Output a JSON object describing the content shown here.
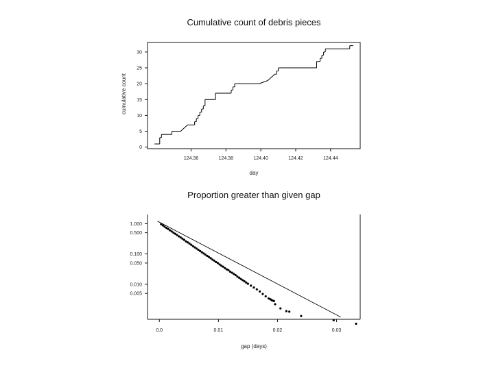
{
  "chart_data": [
    {
      "type": "line",
      "title": "Cumulative count of debris pieces",
      "xlabel": "day",
      "ylabel": "cumulative count",
      "xlim": [
        124.335,
        124.457
      ],
      "ylim": [
        -0.5,
        33
      ],
      "xticks": [
        "124.36",
        "124.38",
        "124.40",
        "124.42",
        "124.44"
      ],
      "yticks": [
        "0",
        "5",
        "10",
        "15",
        "20",
        "25",
        "30"
      ],
      "series": [
        {
          "x": [
            124.339,
            124.342,
            124.342,
            124.343,
            124.343,
            124.349,
            124.349,
            124.354,
            124.358,
            124.362,
            124.362,
            124.363,
            124.363,
            124.364,
            124.364,
            124.365,
            124.365,
            124.366,
            124.366,
            124.367,
            124.367,
            124.368,
            124.368,
            124.374,
            124.374,
            124.383,
            124.383,
            124.384,
            124.384,
            124.385,
            124.385,
            124.399,
            124.404,
            124.404,
            124.408,
            124.409,
            124.409,
            124.41,
            124.41,
            124.411,
            124.411,
            124.432,
            124.432,
            124.434,
            124.434,
            124.435,
            124.435,
            124.436,
            124.436,
            124.437,
            124.437,
            124.451,
            124.451,
            124.453
          ],
          "y": [
            1,
            1,
            3,
            3,
            4,
            4,
            5,
            5,
            7,
            7,
            8,
            8,
            9,
            9,
            10,
            10,
            11,
            11,
            12,
            12,
            13,
            13,
            15,
            15,
            17,
            17,
            18,
            18,
            19,
            19,
            20,
            20,
            21,
            21,
            23,
            23,
            24,
            24,
            25,
            25,
            25,
            25,
            27,
            27,
            28,
            28,
            29,
            29,
            30,
            30,
            31,
            31,
            32,
            32
          ]
        }
      ],
      "grid": false
    },
    {
      "type": "scatter",
      "title": "Proportion greater than given gap",
      "xlabel": "gap (days)",
      "ylabel": "",
      "log_y": true,
      "xlim": [
        -0.002,
        0.034
      ],
      "ylim": [
        0.0007,
        2
      ],
      "xticks": [
        "0.0",
        "0.01",
        "0.02",
        "0.03"
      ],
      "yticks": [
        "1.000",
        "0.500",
        "0.100",
        "0.050",
        "0.010",
        "0.005"
      ],
      "fit_line": {
        "x": [
          -0.0003,
          0.0307
        ],
        "y": [
          1.2,
          0.00083
        ]
      },
      "series": [
        {
          "x": [
            0.0003,
            0.0006,
            0.0009,
            0.0012,
            0.0015,
            0.0018,
            0.0021,
            0.0024,
            0.0027,
            0.003,
            0.0033,
            0.0036,
            0.0039,
            0.0042,
            0.0045,
            0.0048,
            0.0051,
            0.0054,
            0.0057,
            0.006,
            0.0063,
            0.0066,
            0.0069,
            0.0072,
            0.0075,
            0.0078,
            0.0081,
            0.0084,
            0.0087,
            0.009,
            0.0093,
            0.0096,
            0.0099,
            0.0102,
            0.0105,
            0.0108,
            0.0111,
            0.0114,
            0.0117,
            0.012,
            0.0123,
            0.0126,
            0.0129,
            0.0132,
            0.0135,
            0.0138,
            0.0141,
            0.0144,
            0.0147,
            0.015,
            0.0155,
            0.016,
            0.0165,
            0.017,
            0.0175,
            0.018,
            0.0185,
            0.0188,
            0.019,
            0.0192,
            0.0194,
            0.0196,
            0.0205,
            0.0215,
            0.022,
            0.024,
            0.0295,
            0.0333
          ],
          "y": [
            0.95,
            0.87,
            0.79,
            0.72,
            0.66,
            0.6,
            0.55,
            0.5,
            0.46,
            0.42,
            0.38,
            0.35,
            0.32,
            0.29,
            0.26,
            0.24,
            0.22,
            0.2,
            0.18,
            0.165,
            0.15,
            0.137,
            0.125,
            0.114,
            0.104,
            0.095,
            0.086,
            0.079,
            0.072,
            0.065,
            0.06,
            0.054,
            0.05,
            0.045,
            0.041,
            0.038,
            0.034,
            0.031,
            0.029,
            0.026,
            0.024,
            0.022,
            0.02,
            0.018,
            0.0165,
            0.015,
            0.0137,
            0.0125,
            0.0114,
            0.0104,
            0.009,
            0.0078,
            0.0068,
            0.0058,
            0.0048,
            0.004,
            0.0034,
            0.0032,
            0.003,
            0.0029,
            0.0028,
            0.0022,
            0.0016,
            0.0013,
            0.00125,
            0.0009,
            0.00065,
            0.0005
          ]
        }
      ],
      "grid": false
    }
  ]
}
